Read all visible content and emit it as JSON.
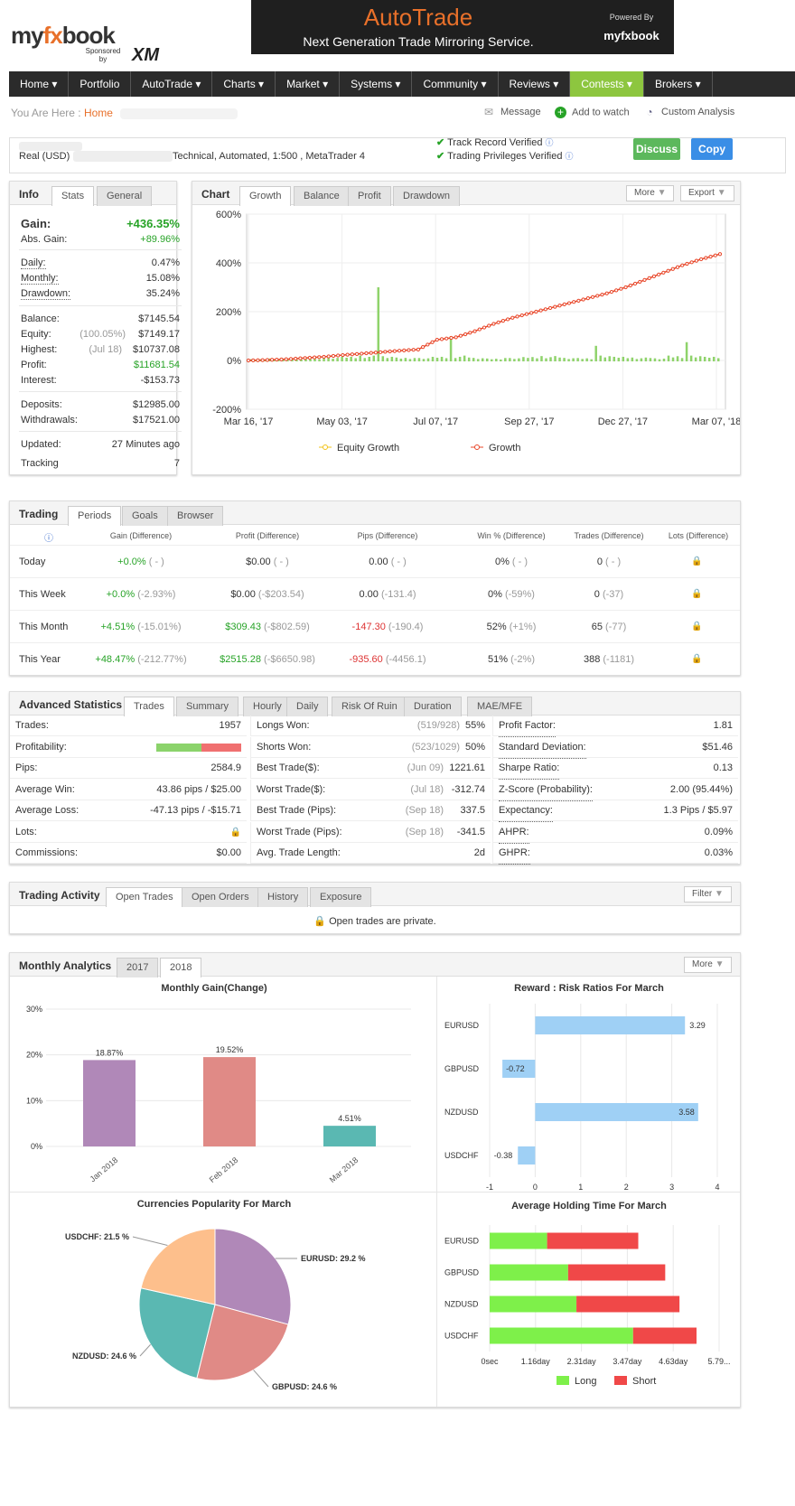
{
  "header": {
    "logo_my": "my",
    "logo_fx": "fx",
    "logo_book": "book",
    "logo_sponsored": "Sponsored by",
    "logo_xm": "XM",
    "banner_title": "AutoTrade",
    "banner_sub": "Next Generation Trade Mirroring Service.",
    "banner_powered": "Powered By",
    "banner_brand": "myfxbook"
  },
  "nav": [
    "Home ▾",
    "Portfolio",
    "AutoTrade ▾",
    "Charts ▾",
    "Market ▾",
    "Systems ▾",
    "Community ▾",
    "Reviews ▾",
    "Contests ▾",
    "Brokers ▾"
  ],
  "breadcrumb": {
    "prefix": "You Are Here :",
    "home": "Home"
  },
  "actions": {
    "message": "Message",
    "watch": "Add to watch",
    "analysis": "Custom Analysis"
  },
  "account": {
    "type": "Real (USD)",
    "details": "Technical, Automated, 1:500 , MetaTrader 4",
    "verified1": "Track Record Verified",
    "verified2": "Trading Privileges Verified",
    "discuss": "Discuss",
    "copy": "Copy"
  },
  "info": {
    "title": "Info",
    "tab_stats": "Stats",
    "tab_general": "General",
    "gain_label": "Gain:",
    "gain": "+436.35%",
    "absgain_label": "Abs. Gain:",
    "absgain": "+89.96%",
    "daily_label": "Daily:",
    "daily": "0.47%",
    "monthly_label": "Monthly:",
    "monthly": "15.08%",
    "drawdown_label": "Drawdown:",
    "drawdown": "35.24%",
    "balance_label": "Balance:",
    "balance": "$7145.54",
    "equity_label": "Equity:",
    "equity_pct": "(100.05%)",
    "equity": "$7149.17",
    "highest_label": "Highest:",
    "highest_date": "(Jul 18)",
    "highest": "$10737.08",
    "profit_label": "Profit:",
    "profit": "$11681.54",
    "interest_label": "Interest:",
    "interest": "-$153.73",
    "deposits_label": "Deposits:",
    "deposits": "$12985.00",
    "withdrawals_label": "Withdrawals:",
    "withdrawals": "$17521.00",
    "updated_label": "Updated:",
    "updated": "27 Minutes ago",
    "tracking_label": "Tracking",
    "tracking": "7"
  },
  "chart_panel": {
    "title": "Chart",
    "tabs": [
      "Growth",
      "Balance",
      "Profit",
      "Drawdown"
    ],
    "more": "More",
    "export": "Export",
    "legend_equity": "Equity Growth",
    "legend_growth": "Growth"
  },
  "chart_data": [
    {
      "type": "line",
      "y_ticks": [
        "600%",
        "400%",
        "200%",
        "0%",
        "-200%"
      ],
      "x_ticks": [
        "Mar 16, '17",
        "May 03, '17",
        "Jul 07, '17",
        "Sep 27, '17",
        "Dec 27, '17",
        "Mar 07, '18"
      ],
      "ylim": [
        -200,
        600
      ],
      "series": [
        {
          "name": "Growth",
          "color": "#e8472a",
          "values": [
            0,
            2,
            5,
            10,
            15,
            22,
            28,
            34,
            40,
            45,
            85,
            95,
            120,
            150,
            175,
            195,
            215,
            235,
            255,
            275,
            300,
            330,
            360,
            390,
            415,
            436
          ]
        },
        {
          "name": "Equity Growth",
          "color": "#f2c318",
          "values": []
        }
      ],
      "bars": [
        5,
        8,
        6,
        10,
        12,
        15,
        20,
        300,
        12,
        10,
        15,
        100,
        12,
        8,
        10,
        14,
        18,
        12,
        10,
        60,
        15,
        12,
        10,
        20,
        75,
        15
      ]
    },
    {
      "type": "bar",
      "title": "Monthly Gain(Change)",
      "categories": [
        "Jan 2018",
        "Feb 2018",
        "Mar 2018"
      ],
      "values": [
        18.87,
        19.52,
        4.51
      ],
      "labels": [
        "18.87%",
        "19.52%",
        "4.51%"
      ],
      "colors": [
        "#b088b8",
        "#e08a86",
        "#5ab8b2"
      ],
      "y_ticks": [
        "30%",
        "20%",
        "10%",
        "0%"
      ],
      "ylim": [
        0,
        30
      ]
    },
    {
      "type": "bar",
      "title": "Reward : Risk Ratios For March",
      "categories": [
        "EURUSD",
        "GBPUSD",
        "NZDUSD",
        "USDCHF"
      ],
      "values": [
        3.29,
        -0.72,
        3.58,
        -0.38
      ],
      "labels": [
        "3.29",
        "-0.72",
        "3.58",
        "-0.38"
      ],
      "x_ticks": [
        "-1",
        "0",
        "1",
        "2",
        "3",
        "4"
      ],
      "xlim": [
        -1,
        4
      ]
    },
    {
      "type": "pie",
      "title": "Currencies Popularity For March",
      "slices": [
        {
          "name": "EURUSD: 29.2 %",
          "value": 29.2,
          "color": "#b088b8"
        },
        {
          "name": "GBPUSD: 24.6 %",
          "value": 24.6,
          "color": "#e08a86"
        },
        {
          "name": "NZDUSD: 24.6 %",
          "value": 24.6,
          "color": "#5ab8b2"
        },
        {
          "name": "USDCHF: 21.5 %",
          "value": 21.5,
          "color": "#fdbf8c"
        }
      ]
    },
    {
      "type": "bar",
      "title": "Average Holding Time For March",
      "categories": [
        "EURUSD",
        "GBPUSD",
        "NZDUSD",
        "USDCHF"
      ],
      "long": [
        1.45,
        1.98,
        2.19,
        3.62
      ],
      "short": [
        2.3,
        2.45,
        2.6,
        1.6
      ],
      "x_ticks": [
        "0sec",
        "1.16day",
        "2.31day",
        "3.47day",
        "4.63day",
        "5.79..."
      ],
      "xmax": 5.79,
      "legend_long": "Long",
      "legend_short": "Short"
    }
  ],
  "trading": {
    "title": "Trading",
    "tabs": [
      "Periods",
      "Goals",
      "Browser"
    ],
    "headers": [
      "Gain (Difference)",
      "Profit (Difference)",
      "Pips (Difference)",
      "Win % (Difference)",
      "Trades (Difference)",
      "Lots (Difference)"
    ],
    "rows": [
      {
        "period": "Today",
        "gain": "+0.0%",
        "gain_d": "( - )",
        "profit": "$0.00",
        "profit_d": "( - )",
        "pips": "0.00",
        "pips_d": "( - )",
        "win": "0%",
        "win_d": "( - )",
        "trades": "0",
        "trades_d": "( - )"
      },
      {
        "period": "This Week",
        "gain": "+0.0%",
        "gain_d": "(-2.93%)",
        "profit": "$0.00",
        "profit_d": "(-$203.54)",
        "pips": "0.00",
        "pips_d": "(-131.4)",
        "win": "0%",
        "win_d": "(-59%)",
        "trades": "0",
        "trades_d": "(-37)"
      },
      {
        "period": "This Month",
        "gain": "+4.51%",
        "gain_d": "(-15.01%)",
        "profit": "$309.43",
        "profit_d": "(-$802.59)",
        "pips": "-147.30",
        "pips_d": "(-190.4)",
        "win": "52%",
        "win_d": "(+1%)",
        "trades": "65",
        "trades_d": "(-77)"
      },
      {
        "period": "This Year",
        "gain": "+48.47%",
        "gain_d": "(-212.77%)",
        "profit": "$2515.28",
        "profit_d": "(-$6650.98)",
        "pips": "-935.60",
        "pips_d": "(-4456.1)",
        "win": "51%",
        "win_d": "(-2%)",
        "trades": "388",
        "trades_d": "(-1181)"
      }
    ]
  },
  "advanced": {
    "title": "Advanced Statistics",
    "tabs": [
      "Trades",
      "Summary",
      "Hourly",
      "Daily",
      "Risk Of Ruin",
      "Duration",
      "MAE/MFE"
    ],
    "col1": [
      [
        "Trades:",
        "1957"
      ],
      [
        "Profitability:",
        ""
      ],
      [
        "Pips:",
        "2584.9"
      ],
      [
        "Average Win:",
        "43.86 pips / $25.00"
      ],
      [
        "Average Loss:",
        "-47.13 pips / -$15.71"
      ],
      [
        "Lots:",
        ""
      ],
      [
        "Commissions:",
        "$0.00"
      ]
    ],
    "col2": [
      [
        "Longs Won:",
        "(519/928)",
        "55%"
      ],
      [
        "Shorts Won:",
        "(523/1029)",
        "50%"
      ],
      [
        "Best Trade($):",
        "(Jun 09)",
        "1221.61"
      ],
      [
        "Worst Trade($):",
        "(Jul 18)",
        "-312.74"
      ],
      [
        "Best Trade (Pips):",
        "(Sep 18)",
        "337.5"
      ],
      [
        "Worst Trade (Pips):",
        "(Sep 18)",
        "-341.5"
      ],
      [
        "Avg. Trade Length:",
        "",
        "2d"
      ]
    ],
    "col3": [
      [
        "Profit Factor:",
        "1.81"
      ],
      [
        "Standard Deviation:",
        "$51.46"
      ],
      [
        "Sharpe Ratio:",
        "0.13"
      ],
      [
        "Z-Score (Probability):",
        "2.00 (95.44%)"
      ],
      [
        "Expectancy:",
        "1.3 Pips / $5.97"
      ],
      [
        "AHPR:",
        "0.09%"
      ],
      [
        "GHPR:",
        "0.03%"
      ]
    ],
    "profitability_pct": 53
  },
  "activity": {
    "title": "Trading Activity",
    "tabs": [
      "Open Trades",
      "Open Orders",
      "History",
      "Exposure"
    ],
    "filter": "Filter",
    "private": "Open trades are private."
  },
  "monthly": {
    "title": "Monthly Analytics",
    "tabs": [
      "2017",
      "2018"
    ],
    "more": "More"
  }
}
